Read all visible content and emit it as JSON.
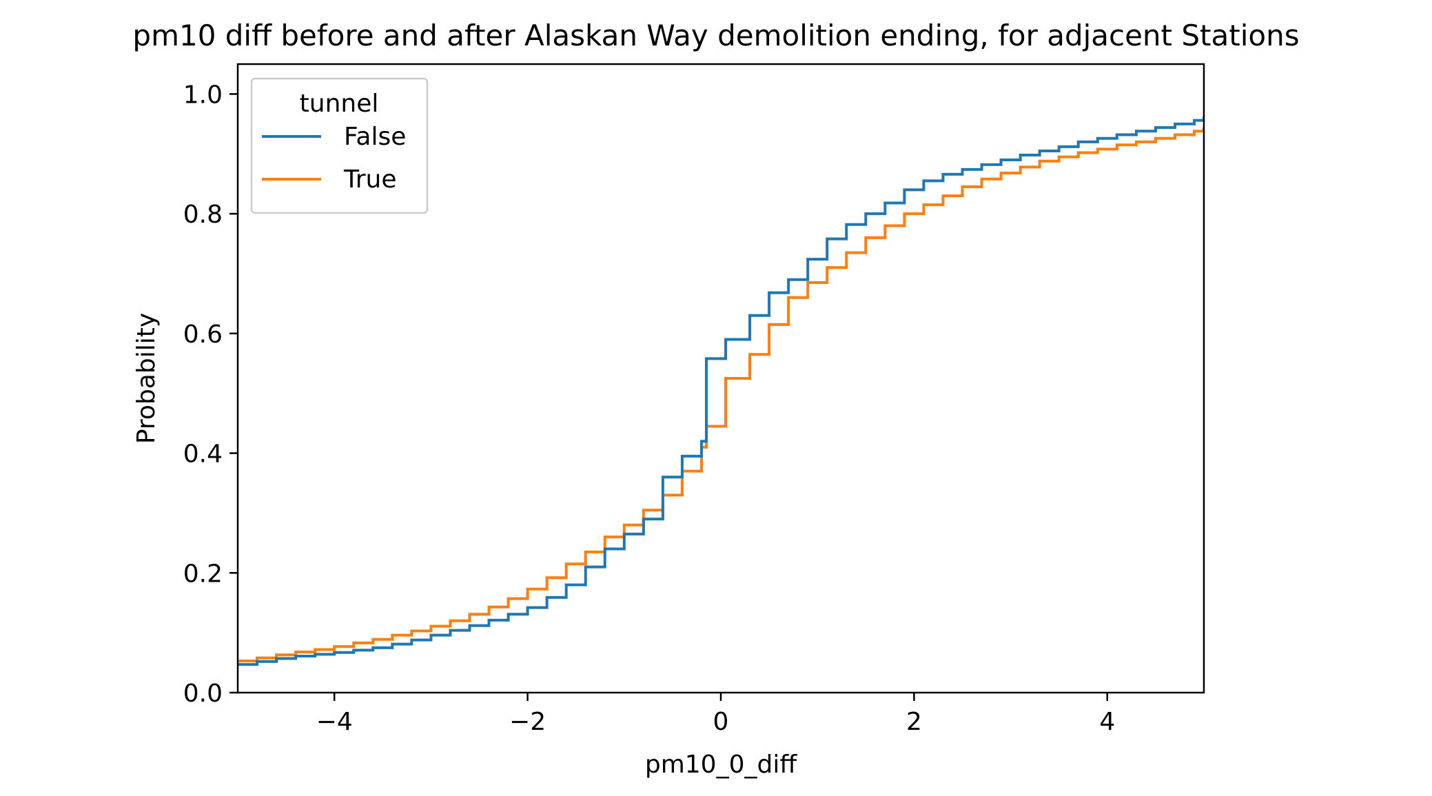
{
  "chart_data": {
    "type": "line",
    "title": "pm10 diff before and after Alaskan Way demolition ending, for adjacent Stations",
    "xlabel": "pm10_0_diff",
    "ylabel": "Probability",
    "xlim": [
      -5,
      5
    ],
    "ylim": [
      0,
      1.05
    ],
    "x_ticks": [
      -4,
      -2,
      0,
      2,
      4
    ],
    "x_tick_labels": [
      "−4",
      "−2",
      "0",
      "2",
      "4"
    ],
    "y_ticks": [
      0.0,
      0.2,
      0.4,
      0.6,
      0.8,
      1.0
    ],
    "y_tick_labels": [
      "0.0",
      "0.2",
      "0.4",
      "0.6",
      "0.8",
      "1.0"
    ],
    "grid": false,
    "step": true,
    "legend": {
      "title": "tunnel",
      "position": "top-left"
    },
    "series": [
      {
        "name": "False",
        "color": "#1f77b4",
        "x": [
          -5.0,
          -4.8,
          -4.6,
          -4.4,
          -4.2,
          -4.0,
          -3.8,
          -3.6,
          -3.4,
          -3.2,
          -3.0,
          -2.8,
          -2.6,
          -2.4,
          -2.2,
          -2.0,
          -1.8,
          -1.6,
          -1.4,
          -1.2,
          -1.0,
          -0.8,
          -0.6,
          -0.4,
          -0.2,
          -0.15,
          0.05,
          0.3,
          0.5,
          0.7,
          0.9,
          1.1,
          1.3,
          1.5,
          1.7,
          1.9,
          2.1,
          2.3,
          2.5,
          2.7,
          2.9,
          3.1,
          3.3,
          3.5,
          3.7,
          3.9,
          4.1,
          4.3,
          4.5,
          4.7,
          4.9,
          5.0
        ],
        "y": [
          0.047,
          0.052,
          0.057,
          0.061,
          0.064,
          0.067,
          0.071,
          0.075,
          0.081,
          0.088,
          0.096,
          0.104,
          0.112,
          0.121,
          0.131,
          0.142,
          0.159,
          0.18,
          0.21,
          0.24,
          0.265,
          0.29,
          0.36,
          0.395,
          0.42,
          0.558,
          0.59,
          0.63,
          0.668,
          0.69,
          0.724,
          0.758,
          0.782,
          0.8,
          0.818,
          0.84,
          0.855,
          0.866,
          0.874,
          0.882,
          0.89,
          0.898,
          0.905,
          0.912,
          0.92,
          0.926,
          0.932,
          0.938,
          0.944,
          0.95,
          0.956,
          0.962
        ]
      },
      {
        "name": "True",
        "color": "#ff7f0e",
        "x": [
          -5.0,
          -4.8,
          -4.6,
          -4.4,
          -4.2,
          -4.0,
          -3.8,
          -3.6,
          -3.4,
          -3.2,
          -3.0,
          -2.8,
          -2.6,
          -2.4,
          -2.2,
          -2.0,
          -1.8,
          -1.6,
          -1.4,
          -1.2,
          -1.0,
          -0.8,
          -0.6,
          -0.4,
          -0.2,
          -0.15,
          0.05,
          0.3,
          0.5,
          0.7,
          0.9,
          1.1,
          1.3,
          1.5,
          1.7,
          1.9,
          2.1,
          2.3,
          2.5,
          2.7,
          2.9,
          3.1,
          3.3,
          3.5,
          3.7,
          3.9,
          4.1,
          4.3,
          4.5,
          4.7,
          4.9,
          5.0
        ],
        "y": [
          0.053,
          0.058,
          0.063,
          0.068,
          0.072,
          0.077,
          0.083,
          0.089,
          0.096,
          0.103,
          0.111,
          0.12,
          0.131,
          0.143,
          0.157,
          0.173,
          0.192,
          0.215,
          0.235,
          0.26,
          0.28,
          0.305,
          0.33,
          0.37,
          0.41,
          0.445,
          0.525,
          0.565,
          0.615,
          0.66,
          0.685,
          0.71,
          0.735,
          0.76,
          0.78,
          0.8,
          0.815,
          0.83,
          0.845,
          0.858,
          0.868,
          0.878,
          0.888,
          0.895,
          0.902,
          0.908,
          0.915,
          0.92,
          0.926,
          0.932,
          0.938,
          0.944
        ]
      }
    ]
  }
}
